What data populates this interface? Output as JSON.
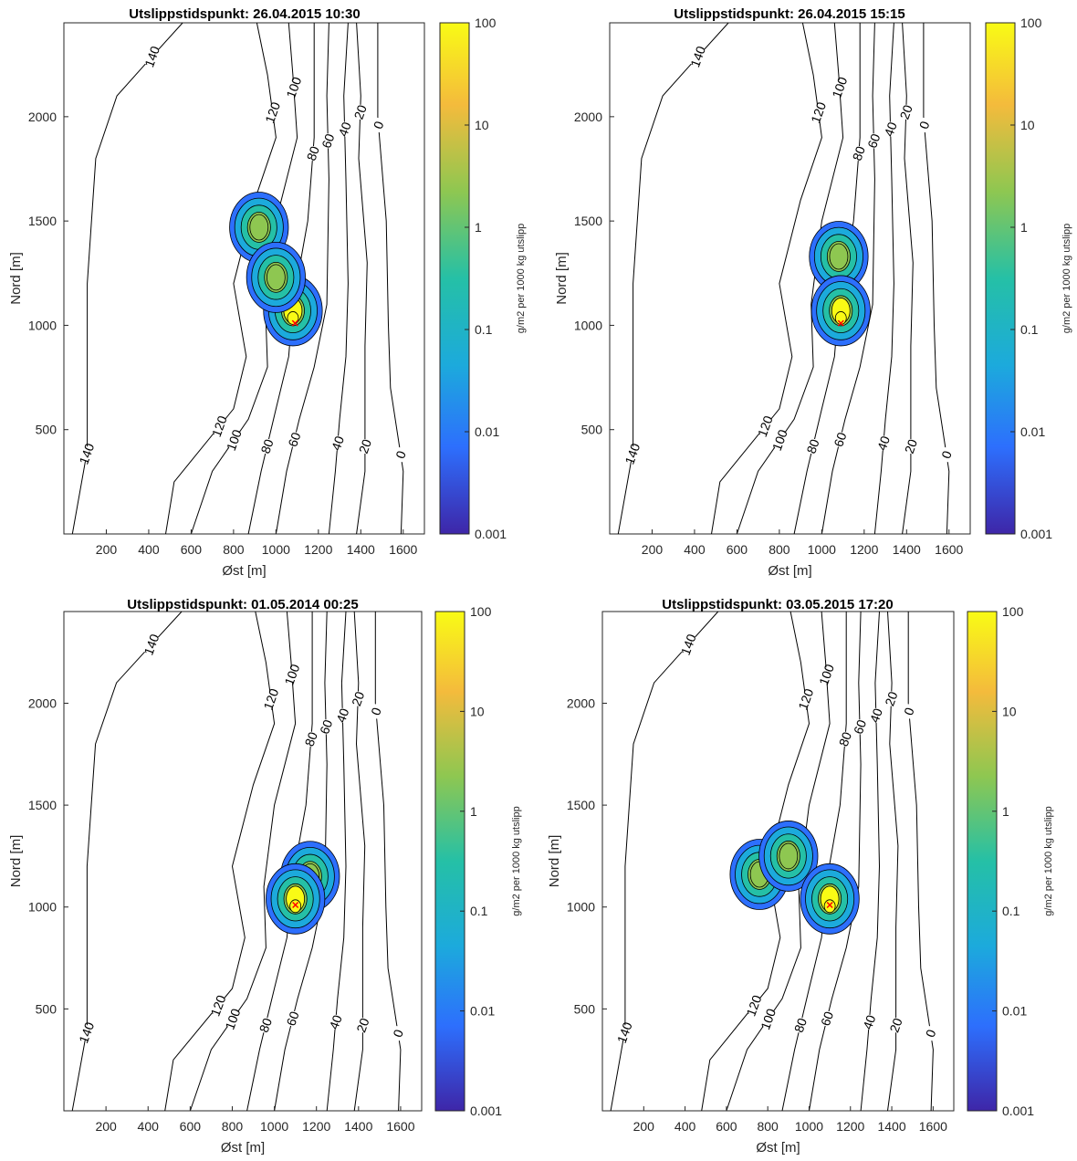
{
  "figure": {
    "panels": [
      {
        "title": "Utslippstidspunkt: 26.04.2015 10:30"
      },
      {
        "title": "Utslippstidspunkt: 26.04.2015 15:15"
      },
      {
        "title": "Utslippstidspunkt: 01.05.2014 00:25"
      },
      {
        "title": "Utslippstidspunkt: 03.05.2015 17:20"
      }
    ]
  },
  "chart_data": [
    {
      "type": "contour",
      "title": "Utslippstidspunkt: 26.04.2015 10:30",
      "xlabel": "Øst [m]",
      "ylabel": "Nord [m]",
      "xlim": [
        0,
        1700
      ],
      "ylim": [
        0,
        2450
      ],
      "xticks": [
        200,
        400,
        600,
        800,
        1000,
        1200,
        1400,
        1600
      ],
      "yticks": [
        500,
        1000,
        1500,
        2000
      ],
      "colorbar": {
        "label": "g/m2 per 1000 kg utslipp",
        "scale": "log",
        "range": [
          0.001,
          100
        ],
        "ticks": [
          "0.001",
          "0.01",
          "0.1",
          "1",
          "10",
          "100"
        ],
        "colormap": [
          "#3e26a8",
          "#2d6ffd",
          "#1caadc",
          "#25c0a6",
          "#8ec751",
          "#f4bb3c",
          "#f9fb15"
        ]
      },
      "terrain_contour_labels": [
        "140",
        "120",
        "100",
        "80",
        "60",
        "40",
        "20",
        "0"
      ],
      "release_point": {
        "x": 1090,
        "y": 1010
      },
      "plume": [
        {
          "x": 920,
          "y": 1470,
          "value": 1.8
        },
        {
          "x": 1080,
          "y": 1070,
          "value": 40
        },
        {
          "x": 1000,
          "y": 1230,
          "value": 2
        }
      ]
    },
    {
      "type": "contour",
      "title": "Utslippstidspunkt: 26.04.2015 15:15",
      "xlabel": "Øst [m]",
      "ylabel": "Nord [m]",
      "xlim": [
        0,
        1700
      ],
      "ylim": [
        0,
        2450
      ],
      "xticks": [
        200,
        400,
        600,
        800,
        1000,
        1200,
        1400,
        1600
      ],
      "yticks": [
        500,
        1000,
        1500,
        2000
      ],
      "colorbar": {
        "label": "g/m2 per 1000 kg utslipp",
        "scale": "log",
        "range": [
          0.001,
          100
        ],
        "ticks": [
          "0.001",
          "0.01",
          "0.1",
          "1",
          "10",
          "100"
        ],
        "colormap": [
          "#3e26a8",
          "#2d6ffd",
          "#1caadc",
          "#25c0a6",
          "#8ec751",
          "#f4bb3c",
          "#f9fb15"
        ]
      },
      "terrain_contour_labels": [
        "140",
        "120",
        "100",
        "80",
        "60",
        "40",
        "20",
        "0"
      ],
      "release_point": {
        "x": 1090,
        "y": 1010
      },
      "plume": [
        {
          "x": 1080,
          "y": 1330,
          "value": 3
        },
        {
          "x": 1090,
          "y": 1070,
          "value": 50
        }
      ]
    },
    {
      "type": "contour",
      "title": "Utslippstidspunkt: 01.05.2014 00:25",
      "xlabel": "Øst [m]",
      "ylabel": "Nord [m]",
      "xlim": [
        0,
        1700
      ],
      "ylim": [
        0,
        2450
      ],
      "xticks": [
        200,
        400,
        600,
        800,
        1000,
        1200,
        1400,
        1600
      ],
      "yticks": [
        500,
        1000,
        1500,
        2000
      ],
      "colorbar": {
        "label": "g/m2 per 1000 kg utslipp",
        "scale": "log",
        "range": [
          0.001,
          100
        ],
        "ticks": [
          "0.001",
          "0.01",
          "0.1",
          "1",
          "10",
          "100"
        ],
        "colormap": [
          "#3e26a8",
          "#2d6ffd",
          "#1caadc",
          "#25c0a6",
          "#8ec751",
          "#f4bb3c",
          "#f9fb15"
        ]
      },
      "terrain_contour_labels": [
        "140",
        "120",
        "100",
        "80",
        "60",
        "40",
        "20",
        "0"
      ],
      "release_point": {
        "x": 1100,
        "y": 1010
      },
      "plume": [
        {
          "x": 1170,
          "y": 1150,
          "value": 2
        },
        {
          "x": 1100,
          "y": 1040,
          "value": 60
        }
      ]
    },
    {
      "type": "contour",
      "title": "Utslippstidspunkt: 03.05.2015 17:20",
      "xlabel": "Øst [m]",
      "ylabel": "Nord [m]",
      "xlim": [
        0,
        1700
      ],
      "ylim": [
        0,
        2450
      ],
      "xticks": [
        200,
        400,
        600,
        800,
        1000,
        1200,
        1400,
        1600
      ],
      "yticks": [
        500,
        1000,
        1500,
        2000
      ],
      "colorbar": {
        "label": "g/m2 per 1000 kg utslipp",
        "scale": "log",
        "range": [
          0.001,
          100
        ],
        "ticks": [
          "0.001",
          "0.01",
          "0.1",
          "1",
          "10",
          "100"
        ],
        "colormap": [
          "#3e26a8",
          "#2d6ffd",
          "#1caadc",
          "#25c0a6",
          "#8ec751",
          "#f4bb3c",
          "#f9fb15"
        ]
      },
      "terrain_contour_labels": [
        "140",
        "120",
        "100",
        "80",
        "60",
        "40",
        "20",
        "0"
      ],
      "release_point": {
        "x": 1100,
        "y": 1010
      },
      "plume": [
        {
          "x": 760,
          "y": 1160,
          "value": 1.5
        },
        {
          "x": 900,
          "y": 1250,
          "value": 2
        },
        {
          "x": 1100,
          "y": 1040,
          "value": 50
        }
      ]
    }
  ]
}
